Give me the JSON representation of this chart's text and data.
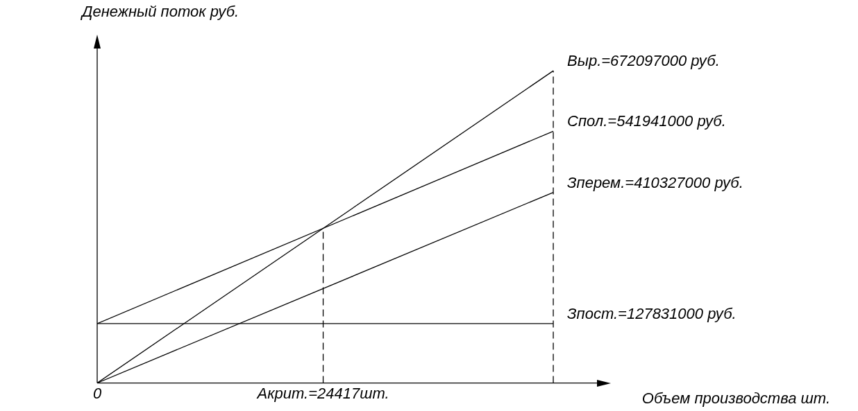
{
  "chart_data": {
    "type": "line",
    "xlabel": "Объем производства шт.",
    "ylabel": "Денежный поток руб.",
    "xlim": [
      0,
      54000
    ],
    "ylim": [
      0,
      720000000
    ],
    "xticks": [
      0,
      {
        "value": 24417,
        "label": "Акрит.=24417шт."
      }
    ],
    "x": [
      0,
      49278
    ],
    "tick_labels": "x",
    "grid": false,
    "legend": false,
    "marker": "none",
    "line_style": "solid",
    "series": [
      {
        "color": "#000000",
        "values": [
          0,
          672097000
        ],
        "value_labels": [
          null,
          "Выр.=672097000 руб."
        ]
      },
      {
        "color": "#000000",
        "values": [
          127831000,
          541941000
        ],
        "value_labels": [
          null,
          "Спол.=541941000 руб."
        ]
      },
      {
        "color": "#000000",
        "values": [
          0,
          410327000
        ],
        "value_labels": [
          null,
          "Зперем.=410327000 руб."
        ]
      },
      {
        "color": "#000000",
        "values": [
          127831000,
          127831000
        ],
        "value_labels": [
          null,
          "Зпост.=127831000 руб."
        ]
      }
    ],
    "ref_lines": [
      {
        "axis": "x",
        "value": 24417,
        "line_style": "dashed",
        "color": "#000000"
      },
      {
        "axis": "x",
        "value": 49278,
        "line_style": "dashed",
        "color": "#000000"
      }
    ]
  }
}
